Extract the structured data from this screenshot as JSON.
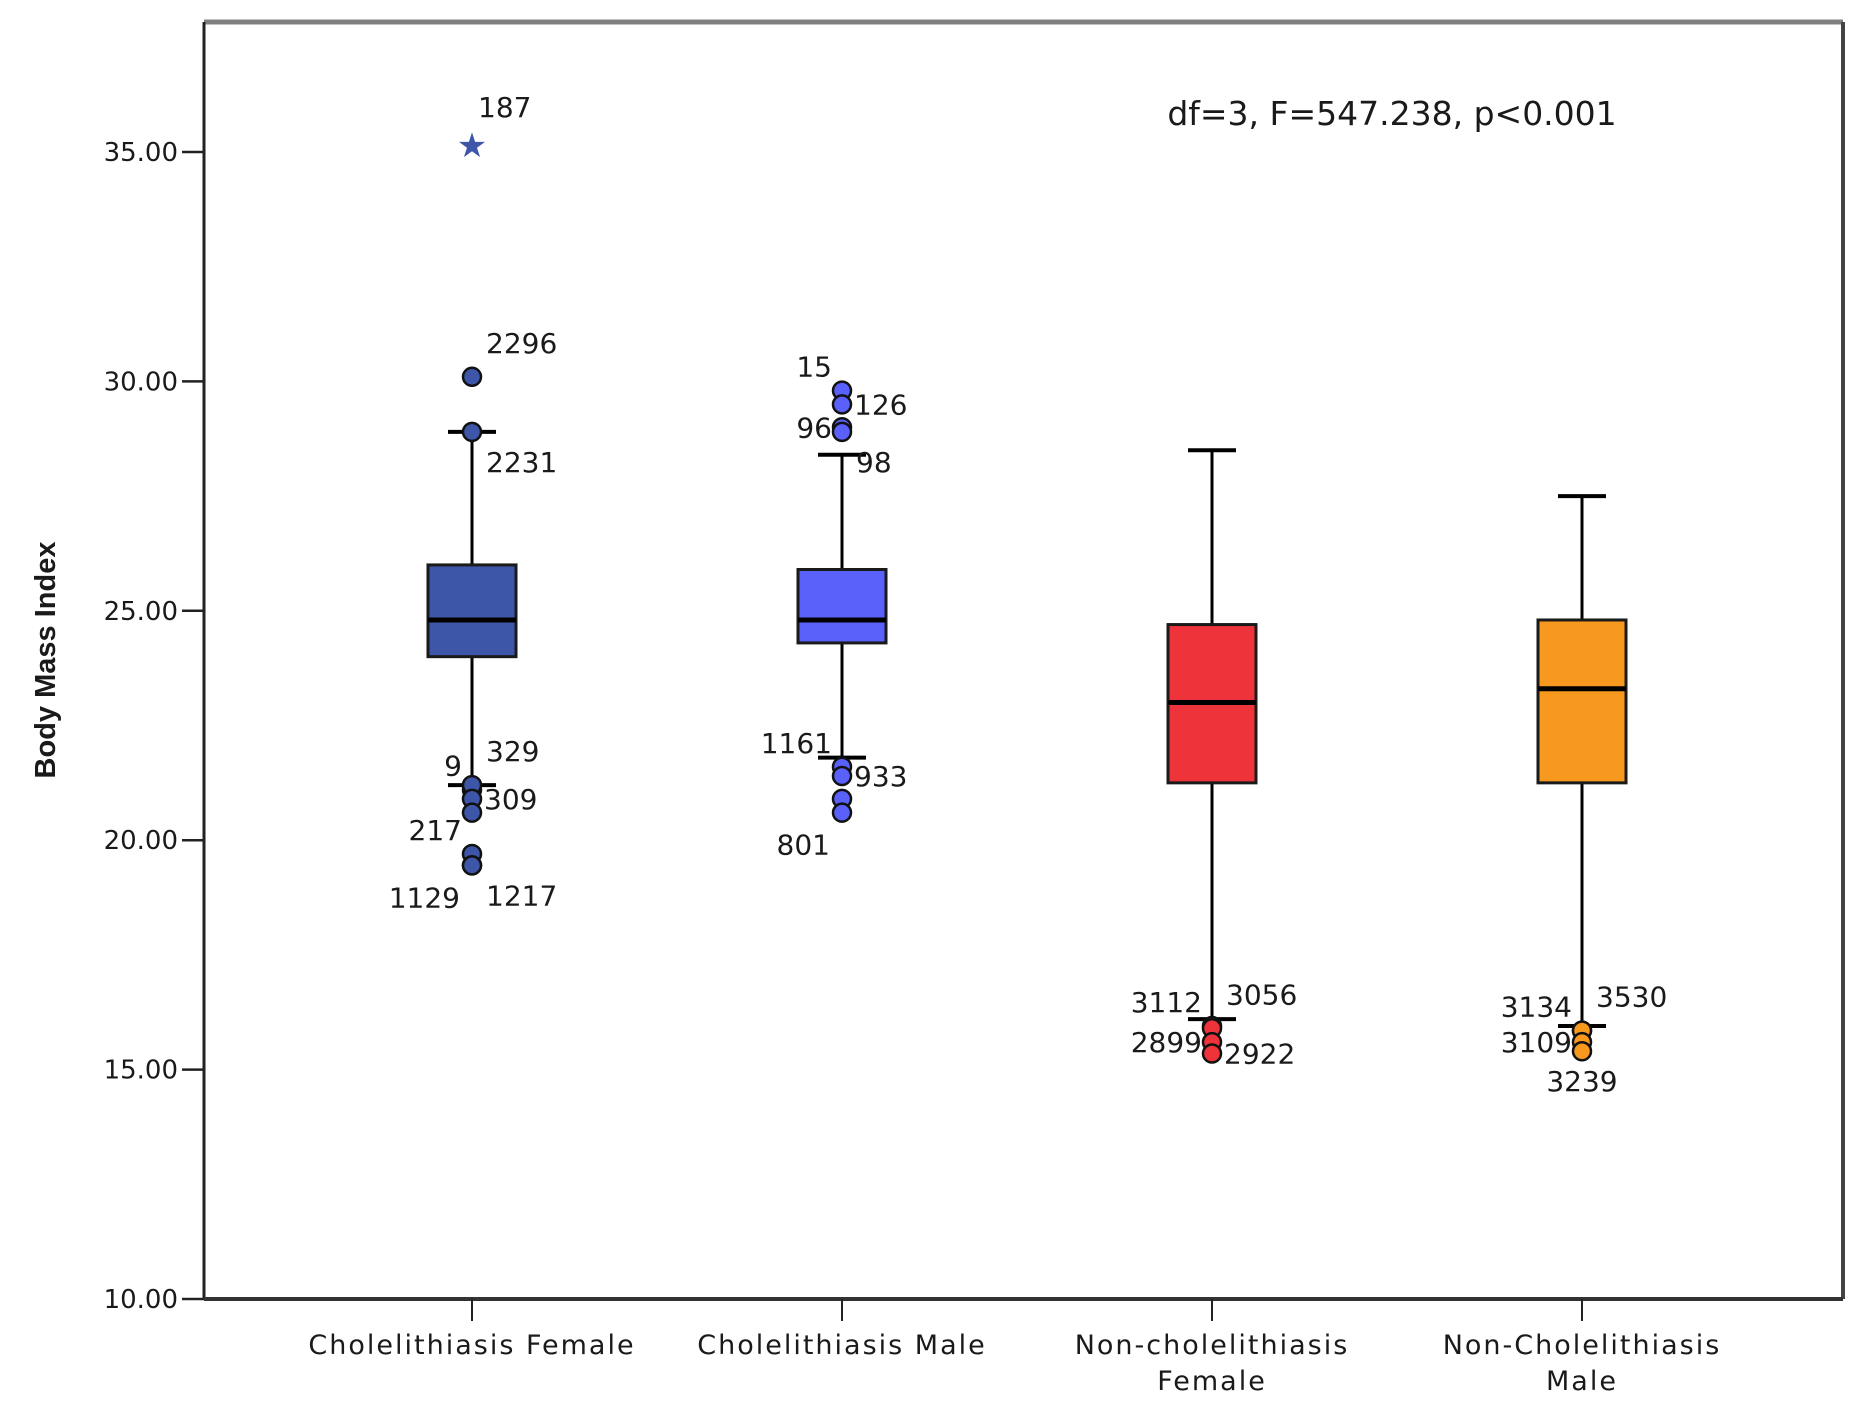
{
  "chart_data": {
    "type": "box",
    "title": "",
    "xlabel": "",
    "ylabel": "Body Mass Index",
    "ylim": [
      10,
      37.5
    ],
    "yticks": [
      10,
      15,
      20,
      25,
      30,
      35
    ],
    "ytick_labels": [
      "10.00",
      "15.00",
      "20.00",
      "25.00",
      "30.00",
      "35.00"
    ],
    "grid": false,
    "annotation": "df=3, F=547.238, p<0.001",
    "categories": [
      [
        "Cholelithiasis Female"
      ],
      [
        "Cholelithiasis Male"
      ],
      [
        "Non-cholelithiasis",
        "Female"
      ],
      [
        "Non-Cholelithiasis",
        "Male"
      ]
    ],
    "series": [
      {
        "name": "Cholelithiasis Female",
        "color": "#3d56a8",
        "whisker_low": 21.2,
        "q1": 24.0,
        "median": 24.8,
        "q3": 26.0,
        "whisker_high": 28.9,
        "outliers": [
          {
            "value": 30.1,
            "label": "2296",
            "side": "right-up"
          },
          {
            "value": 28.9,
            "label": "2231",
            "side": "right-down"
          },
          {
            "value": 21.1,
            "label": "9",
            "side": "left-up"
          },
          {
            "value": 21.2,
            "label": "329",
            "side": "right-up"
          },
          {
            "value": 20.9,
            "label": "309",
            "side": "right"
          },
          {
            "value": 20.6,
            "label": "",
            "side": "none"
          },
          {
            "value": 19.7,
            "label": "217",
            "side": "left-up"
          },
          {
            "value": 19.45,
            "label": "1217",
            "side": "right-down"
          },
          {
            "value": 19.45,
            "label": "1129",
            "side": "left-down"
          }
        ],
        "extremes": [
          {
            "value": 35.2,
            "label": "187"
          }
        ]
      },
      {
        "name": "Cholelithiasis Male",
        "color": "#5a60fa",
        "whisker_low": 21.8,
        "q1": 24.3,
        "median": 24.8,
        "q3": 25.9,
        "whisker_high": 28.4,
        "outliers": [
          {
            "value": 29.8,
            "label": "15",
            "side": "left-up"
          },
          {
            "value": 29.5,
            "label": "126",
            "side": "right"
          },
          {
            "value": 29.0,
            "label": "96",
            "side": "left"
          },
          {
            "value": 28.9,
            "label": "98",
            "side": "right-down"
          },
          {
            "value": 21.6,
            "label": "1161",
            "side": "left-up"
          },
          {
            "value": 21.4,
            "label": "933",
            "side": "right"
          },
          {
            "value": 20.9,
            "label": "",
            "side": "none"
          },
          {
            "value": 20.6,
            "label": "801",
            "side": "left-down"
          }
        ],
        "extremes": []
      },
      {
        "name": "Non-cholelithiasis Female",
        "color": "#ef333b",
        "whisker_low": 16.1,
        "q1": 21.25,
        "median": 23.0,
        "q3": 24.7,
        "whisker_high": 28.5,
        "outliers": [
          {
            "value": 15.95,
            "label": "3112",
            "side": "left-up"
          },
          {
            "value": 15.9,
            "label": "3056",
            "side": "right-up"
          },
          {
            "value": 15.6,
            "label": "2899",
            "side": "left"
          },
          {
            "value": 15.35,
            "label": "2922",
            "side": "right"
          }
        ],
        "extremes": []
      },
      {
        "name": "Non-Cholelithiasis Male",
        "color": "#f7991e",
        "whisker_low": 15.95,
        "q1": 21.25,
        "median": 23.3,
        "q3": 24.8,
        "whisker_high": 27.5,
        "outliers": [
          {
            "value": 15.85,
            "label": "3134",
            "side": "left-up"
          },
          {
            "value": 15.85,
            "label": "3530",
            "side": "right-up"
          },
          {
            "value": 15.6,
            "label": "3109",
            "side": "left"
          },
          {
            "value": 15.4,
            "label": "3239",
            "side": "below"
          }
        ],
        "extremes": []
      }
    ]
  }
}
